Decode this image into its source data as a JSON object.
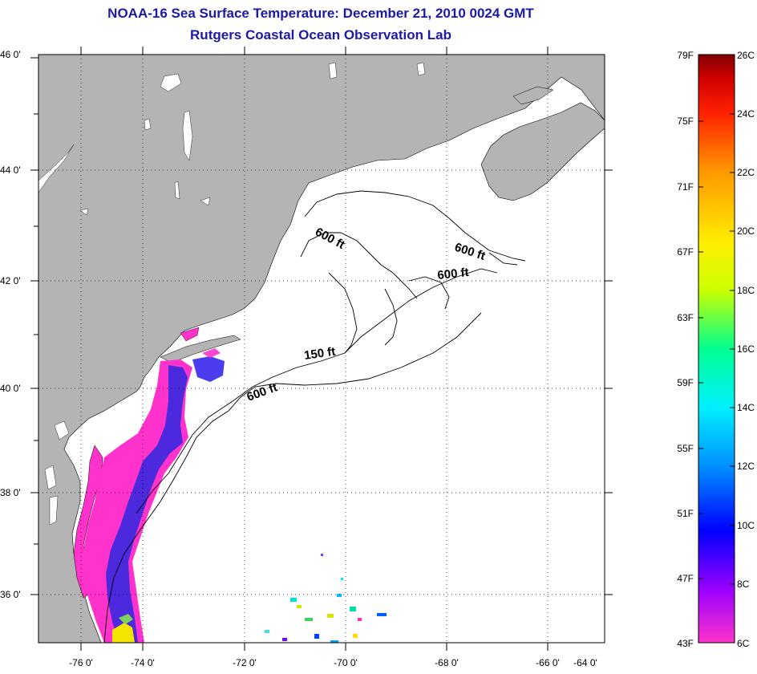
{
  "title": {
    "line1": "NOAA-16 Sea Surface Temperature:  December 21, 2010 0024 GMT",
    "line2": "Rutgers Coastal Ocean Observation Lab"
  },
  "map": {
    "lat_labels": [
      "46 0'",
      "44 0'",
      "42 0'",
      "40 0'",
      "38 0'",
      "36 0'"
    ],
    "lon_labels": [
      "-76 0'",
      "-74 0'",
      "-72 0'",
      "-70 0'",
      "-68 0'",
      "-66 0'",
      "-64 0'"
    ],
    "isobath_labels": [
      "600 ft",
      "600 ft",
      "600 ft",
      "150 ft",
      "600 ft"
    ],
    "land_color": "#b4b4b4",
    "water_color": "#ffffff"
  },
  "colorbar": {
    "fahrenheit_labels": [
      "79F",
      "75F",
      "71F",
      "67F",
      "63F",
      "59F",
      "55F",
      "51F",
      "47F",
      "43F"
    ],
    "celsius_labels": [
      "26C",
      "24C",
      "22C",
      "20C",
      "18C",
      "16C",
      "14C",
      "12C",
      "10C",
      "8C",
      "6C"
    ],
    "colors": [
      "#ff33cc",
      "#9a00ff",
      "#0000ff",
      "#0090ff",
      "#00f0ff",
      "#00ff90",
      "#ccff00",
      "#ffee00",
      "#ff9900",
      "#ff2200",
      "#d00000",
      "#800000"
    ]
  }
}
